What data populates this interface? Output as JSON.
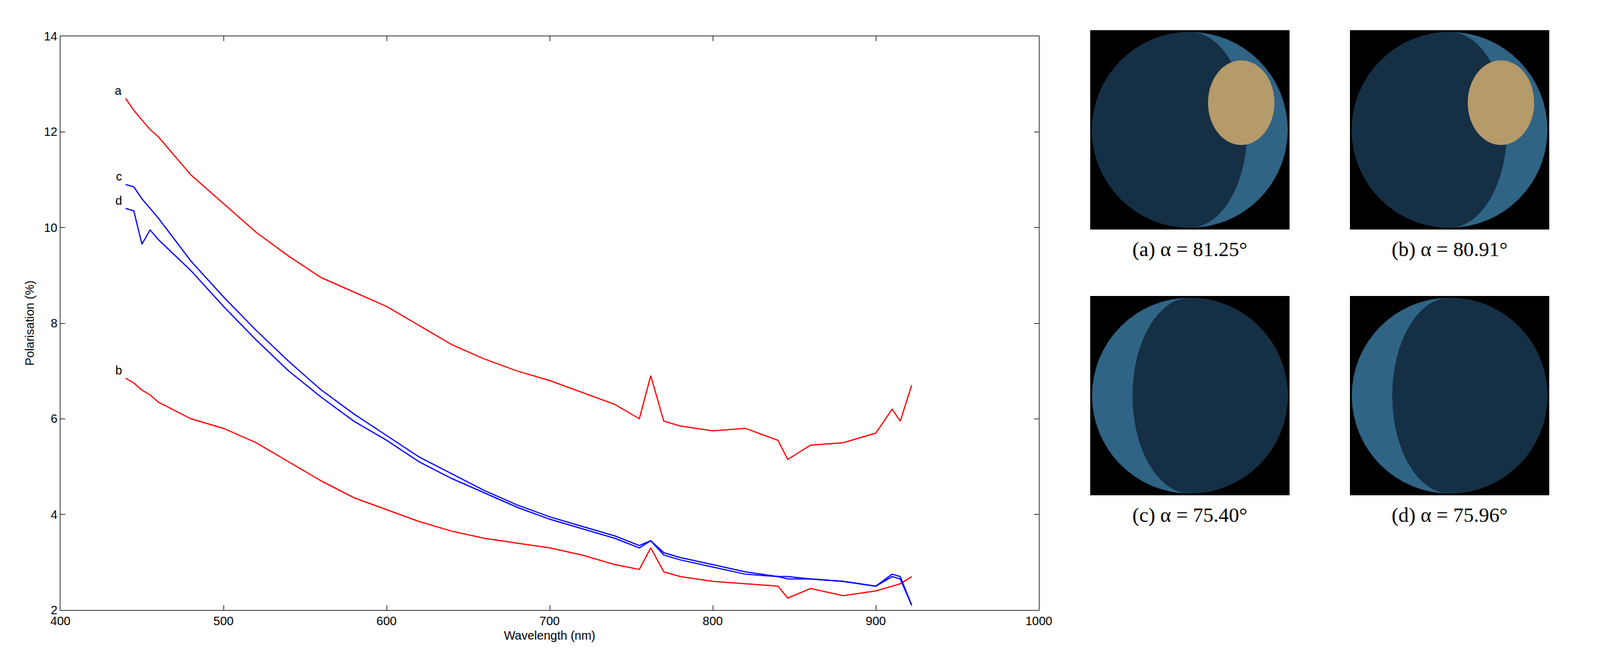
{
  "chart_data": {
    "type": "line",
    "x_label": "Wavelength (nm)",
    "y_label": "Polarisation (%)",
    "x": [
      440,
      445,
      450,
      455,
      460,
      480,
      500,
      520,
      540,
      560,
      580,
      600,
      620,
      640,
      660,
      680,
      700,
      720,
      740,
      755,
      762,
      770,
      780,
      800,
      820,
      840,
      846,
      860,
      880,
      900,
      910,
      915,
      922
    ],
    "series": [
      {
        "name": "a",
        "color": "#ff0000",
        "line_style": "solid",
        "values": [
          12.7,
          12.45,
          12.25,
          12.05,
          11.9,
          11.1,
          10.5,
          9.9,
          9.4,
          8.95,
          8.65,
          8.35,
          7.95,
          7.55,
          7.25,
          7.0,
          6.8,
          6.55,
          6.3,
          6.0,
          6.9,
          5.95,
          5.85,
          5.75,
          5.8,
          5.55,
          5.15,
          5.45,
          5.5,
          5.7,
          6.2,
          5.95,
          6.7
        ]
      },
      {
        "name": "b",
        "color": "#ff0000",
        "line_style": "solid",
        "values": [
          6.85,
          6.75,
          6.6,
          6.5,
          6.35,
          6.0,
          5.8,
          5.5,
          5.1,
          4.7,
          4.35,
          4.1,
          3.85,
          3.65,
          3.5,
          3.4,
          3.3,
          3.15,
          2.95,
          2.85,
          3.3,
          2.8,
          2.7,
          2.6,
          2.55,
          2.5,
          2.25,
          2.45,
          2.3,
          2.4,
          2.5,
          2.55,
          2.7
        ]
      },
      {
        "name": "c",
        "color": "#0000ff",
        "line_style": "solid",
        "values": [
          10.9,
          10.85,
          10.6,
          10.4,
          10.2,
          9.3,
          8.55,
          7.85,
          7.2,
          6.6,
          6.1,
          5.65,
          5.2,
          4.85,
          4.5,
          4.2,
          3.95,
          3.75,
          3.55,
          3.35,
          3.45,
          3.2,
          3.1,
          2.95,
          2.8,
          2.7,
          2.7,
          2.65,
          2.6,
          2.5,
          2.75,
          2.7,
          2.1
        ]
      },
      {
        "name": "d",
        "color": "#0000ff",
        "line_style": "solid",
        "values": [
          10.4,
          10.35,
          9.65,
          9.95,
          9.75,
          9.1,
          8.35,
          7.65,
          7.0,
          6.45,
          5.95,
          5.55,
          5.1,
          4.75,
          4.45,
          4.15,
          3.9,
          3.7,
          3.5,
          3.3,
          3.45,
          3.15,
          3.05,
          2.9,
          2.75,
          2.7,
          2.65,
          2.65,
          2.6,
          2.5,
          2.7,
          2.65,
          2.1
        ]
      }
    ],
    "xlim": [
      400,
      1000
    ],
    "xticks": [
      400,
      500,
      600,
      700,
      800,
      900,
      1000
    ],
    "ylim": [
      2,
      14
    ],
    "yticks": [
      2,
      4,
      6,
      8,
      10,
      12,
      14
    ],
    "grid": false
  },
  "images": [
    {
      "caption": "(a) α = 81.25°"
    },
    {
      "caption": "(b) α = 80.91°"
    },
    {
      "caption": "(c) α = 75.40°"
    },
    {
      "caption": "(d) α = 75.96°"
    }
  ]
}
